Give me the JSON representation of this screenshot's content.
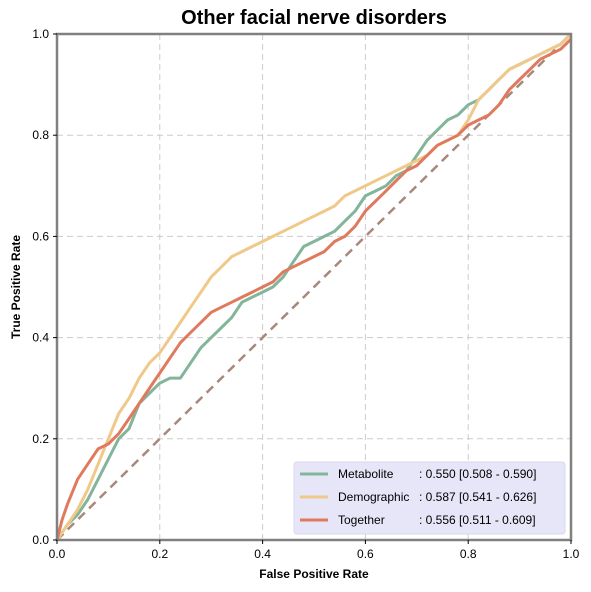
{
  "chart_data": {
    "type": "line",
    "title": "Other facial nerve disorders",
    "xlabel": "False Positive Rate",
    "ylabel": "True Positive Rate",
    "xlim": [
      0,
      1
    ],
    "ylim": [
      0,
      1
    ],
    "xticks": [
      "0.0",
      "0.2",
      "0.4",
      "0.6",
      "0.8",
      "1.0"
    ],
    "yticks": [
      "0.0",
      "0.2",
      "0.4",
      "0.6",
      "0.8",
      "1.0"
    ],
    "grid": true,
    "legend_position": "lower-right",
    "diagonal": {
      "x": [
        0,
        1
      ],
      "y": [
        0,
        1
      ],
      "color": "#a88878",
      "style": "dashed"
    },
    "series": [
      {
        "name": "Metabolite",
        "score": ": 0.550 [0.508 - 0.590]",
        "color": "#82b59a",
        "x": [
          0,
          0.02,
          0.04,
          0.06,
          0.08,
          0.1,
          0.12,
          0.14,
          0.16,
          0.18,
          0.2,
          0.22,
          0.24,
          0.26,
          0.28,
          0.3,
          0.32,
          0.34,
          0.36,
          0.38,
          0.4,
          0.42,
          0.44,
          0.46,
          0.48,
          0.5,
          0.52,
          0.54,
          0.56,
          0.58,
          0.6,
          0.62,
          0.64,
          0.66,
          0.68,
          0.7,
          0.72,
          0.74,
          0.76,
          0.78,
          0.8,
          0.82,
          0.84,
          0.86,
          0.88,
          0.9,
          0.92,
          0.94,
          0.96,
          0.98,
          1.0
        ],
        "y": [
          0,
          0.03,
          0.05,
          0.08,
          0.12,
          0.16,
          0.2,
          0.22,
          0.27,
          0.29,
          0.31,
          0.32,
          0.32,
          0.35,
          0.38,
          0.4,
          0.42,
          0.44,
          0.47,
          0.48,
          0.49,
          0.5,
          0.52,
          0.55,
          0.58,
          0.59,
          0.6,
          0.61,
          0.63,
          0.65,
          0.68,
          0.69,
          0.7,
          0.72,
          0.73,
          0.76,
          0.79,
          0.81,
          0.83,
          0.84,
          0.86,
          0.87,
          0.89,
          0.91,
          0.93,
          0.94,
          0.95,
          0.96,
          0.97,
          0.98,
          1.0
        ]
      },
      {
        "name": "Demographic",
        "score": ": 0.587 [0.541 - 0.626]",
        "color": "#f0c98a",
        "x": [
          0,
          0.02,
          0.04,
          0.06,
          0.08,
          0.1,
          0.12,
          0.14,
          0.16,
          0.18,
          0.2,
          0.22,
          0.24,
          0.26,
          0.28,
          0.3,
          0.32,
          0.34,
          0.36,
          0.38,
          0.4,
          0.42,
          0.44,
          0.46,
          0.48,
          0.5,
          0.52,
          0.54,
          0.56,
          0.58,
          0.6,
          0.62,
          0.64,
          0.66,
          0.68,
          0.7,
          0.72,
          0.74,
          0.76,
          0.78,
          0.8,
          0.82,
          0.84,
          0.86,
          0.88,
          0.9,
          0.92,
          0.94,
          0.96,
          0.98,
          1.0
        ],
        "y": [
          0,
          0.03,
          0.06,
          0.1,
          0.15,
          0.2,
          0.25,
          0.28,
          0.32,
          0.35,
          0.37,
          0.4,
          0.43,
          0.46,
          0.49,
          0.52,
          0.54,
          0.56,
          0.57,
          0.58,
          0.59,
          0.6,
          0.61,
          0.62,
          0.63,
          0.64,
          0.65,
          0.66,
          0.68,
          0.69,
          0.7,
          0.71,
          0.72,
          0.73,
          0.74,
          0.75,
          0.76,
          0.78,
          0.79,
          0.8,
          0.83,
          0.87,
          0.89,
          0.91,
          0.93,
          0.94,
          0.95,
          0.96,
          0.97,
          0.98,
          1.0
        ]
      },
      {
        "name": "Together",
        "score": ": 0.556 [0.511 - 0.609]",
        "color": "#e07a5f",
        "x": [
          0,
          0.01,
          0.02,
          0.04,
          0.06,
          0.08,
          0.1,
          0.12,
          0.14,
          0.16,
          0.18,
          0.2,
          0.22,
          0.24,
          0.26,
          0.28,
          0.3,
          0.32,
          0.34,
          0.36,
          0.38,
          0.4,
          0.42,
          0.44,
          0.46,
          0.48,
          0.5,
          0.52,
          0.54,
          0.56,
          0.58,
          0.6,
          0.62,
          0.64,
          0.66,
          0.68,
          0.7,
          0.72,
          0.74,
          0.76,
          0.78,
          0.8,
          0.82,
          0.84,
          0.86,
          0.88,
          0.9,
          0.92,
          0.94,
          0.96,
          0.98,
          1.0
        ],
        "y": [
          0,
          0.04,
          0.07,
          0.12,
          0.15,
          0.18,
          0.19,
          0.21,
          0.24,
          0.27,
          0.3,
          0.33,
          0.36,
          0.39,
          0.41,
          0.43,
          0.45,
          0.46,
          0.47,
          0.48,
          0.49,
          0.5,
          0.51,
          0.53,
          0.54,
          0.55,
          0.56,
          0.57,
          0.59,
          0.6,
          0.62,
          0.65,
          0.67,
          0.69,
          0.71,
          0.73,
          0.74,
          0.76,
          0.78,
          0.79,
          0.8,
          0.82,
          0.83,
          0.84,
          0.86,
          0.89,
          0.91,
          0.93,
          0.95,
          0.96,
          0.97,
          0.99
        ]
      }
    ]
  },
  "colors": {
    "axis_frame": "#808080",
    "grid": "#cccccc",
    "legend_bg": "#e6e6f8"
  }
}
